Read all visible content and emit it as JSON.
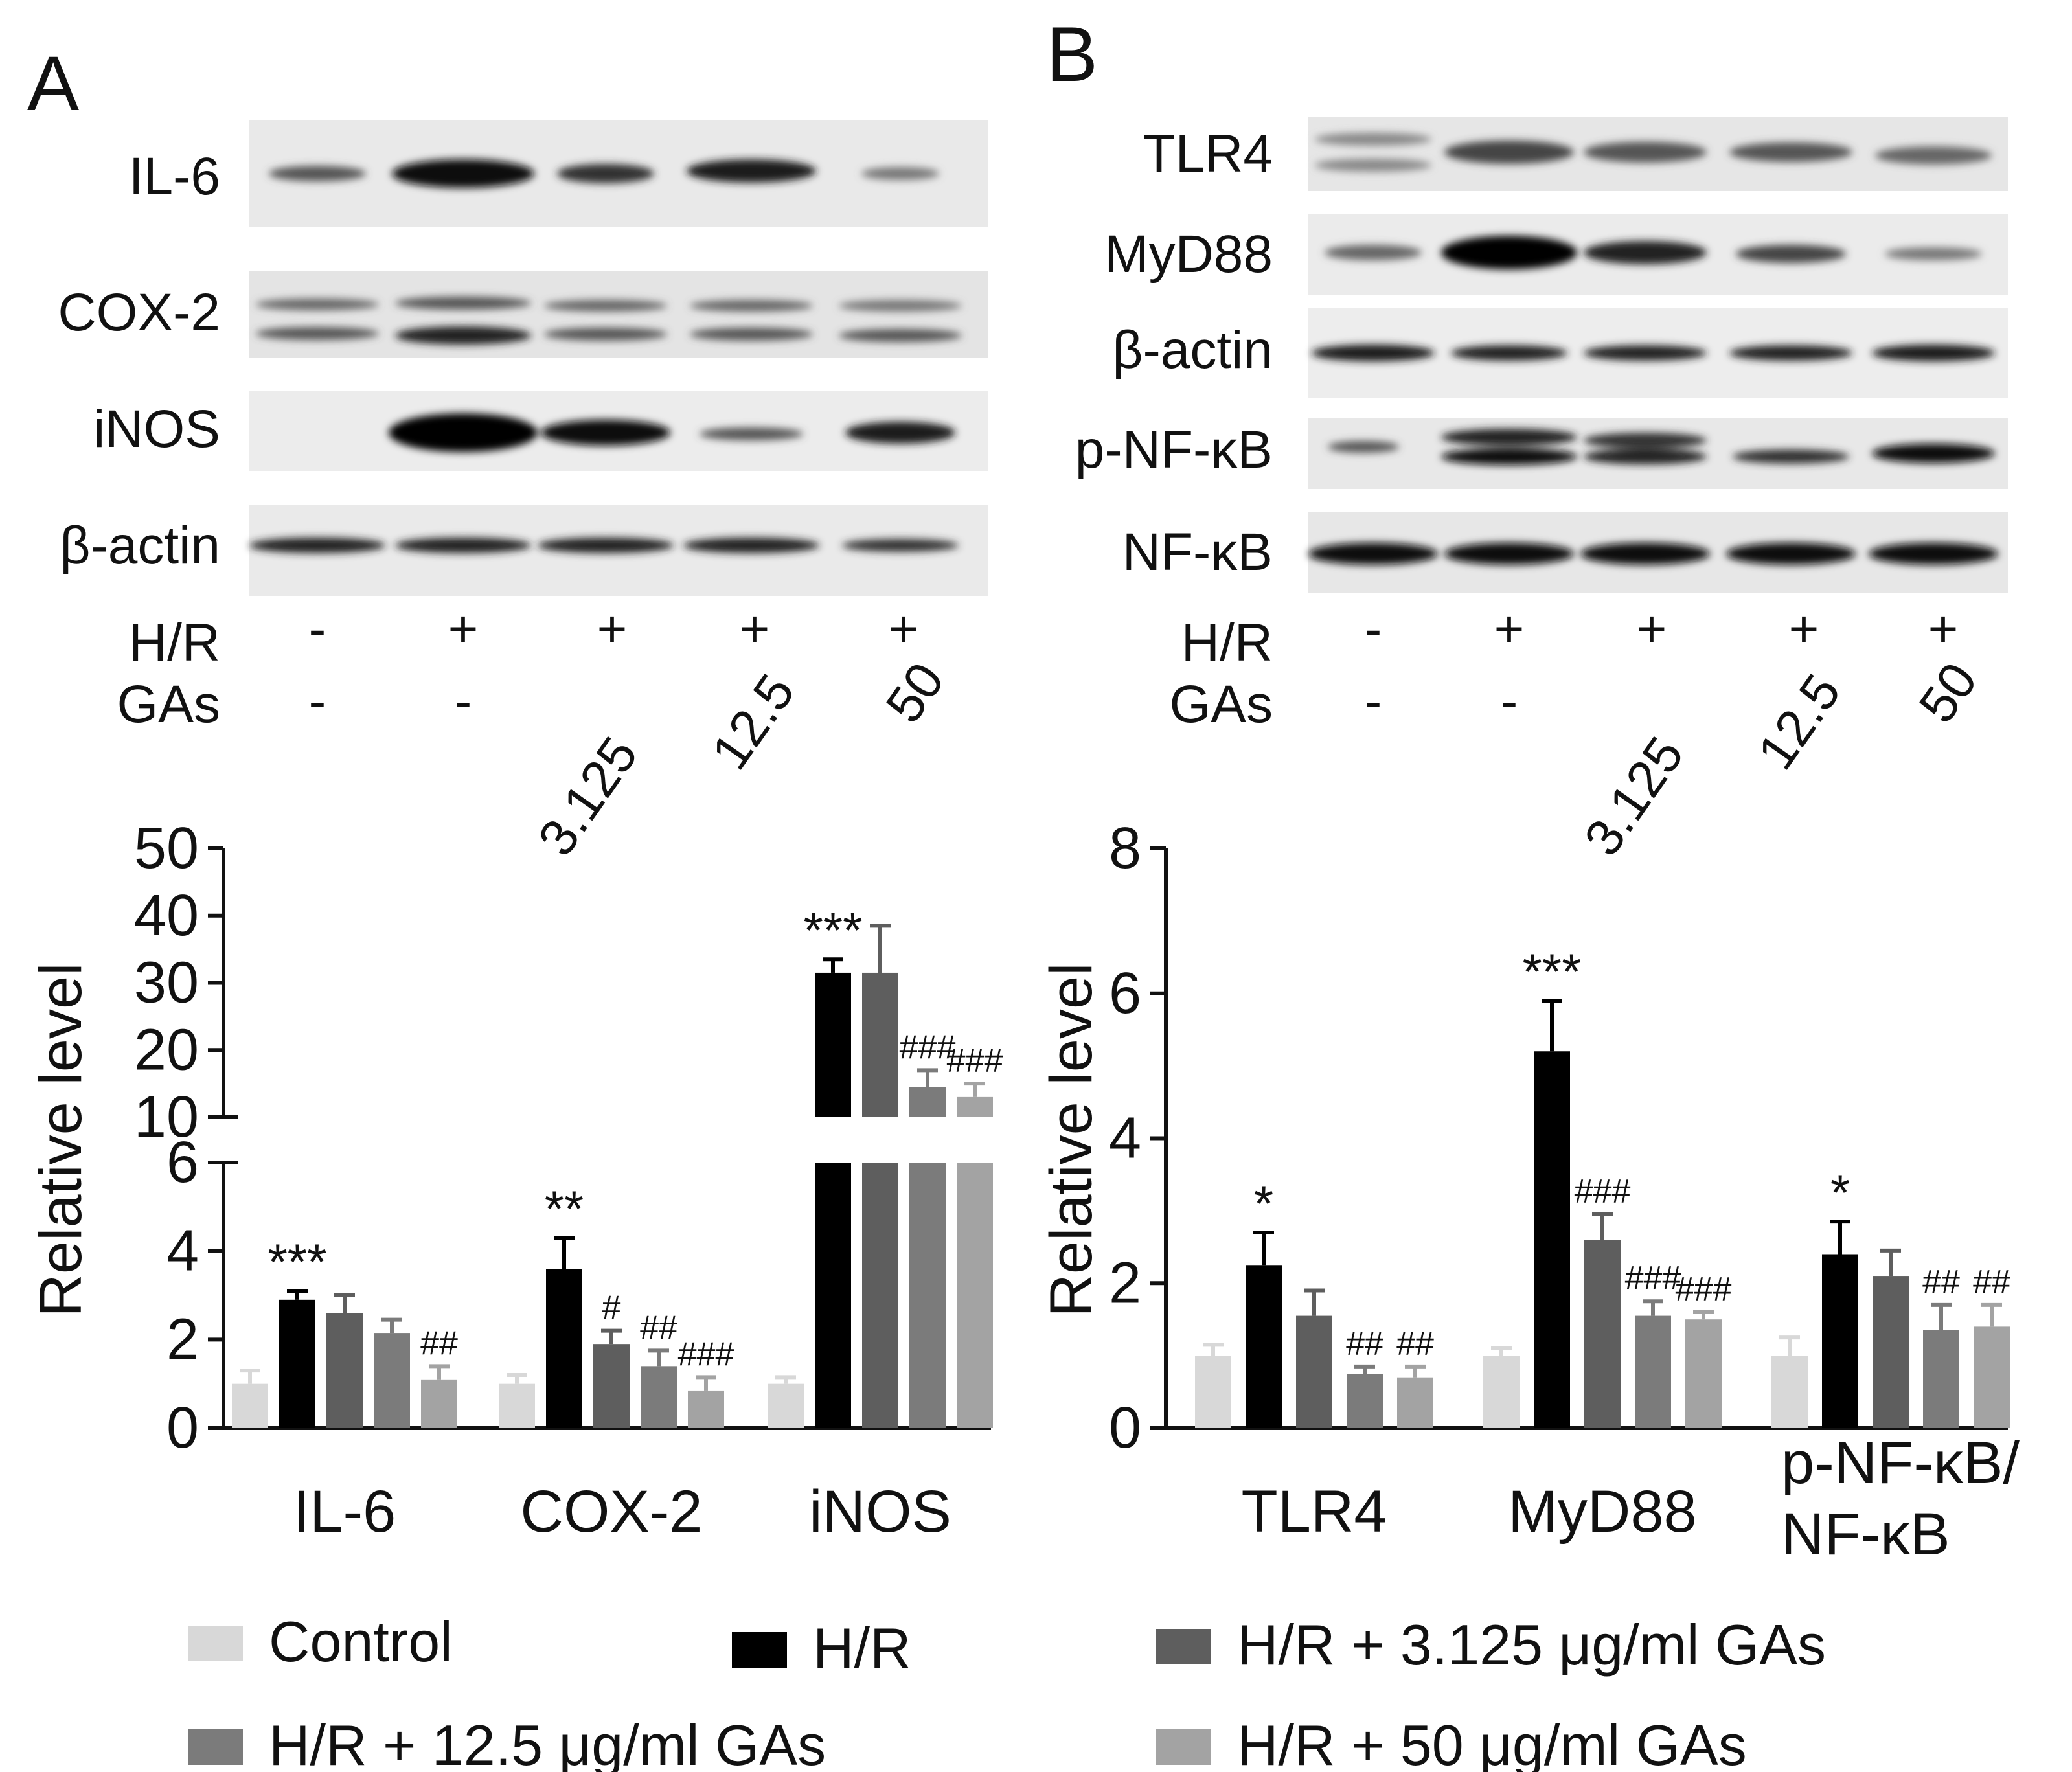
{
  "panels": {
    "a_letter": "A",
    "b_letter": "B"
  },
  "blot_a": {
    "rows": [
      "IL-6",
      "COX-2",
      "iNOS",
      "β-actin"
    ],
    "cond_rows": [
      {
        "label": "H/R",
        "values": [
          "-",
          "+",
          "+",
          "+",
          "+"
        ]
      },
      {
        "label": "GAs",
        "values": [
          "-",
          "-",
          "3.125",
          "12.5",
          "50"
        ]
      }
    ]
  },
  "blot_b": {
    "rows": [
      "TLR4",
      "MyD88",
      "β-actin",
      "p-NF-κB",
      "NF-κB"
    ],
    "cond_rows": [
      {
        "label": "H/R",
        "values": [
          "-",
          "+",
          "+",
          "+",
          "+"
        ]
      },
      {
        "label": "GAs",
        "values": [
          "-",
          "-",
          "3.125",
          "12.5",
          "50"
        ]
      }
    ]
  },
  "series_colors": [
    "#d8d8d8",
    "#000000",
    "#5e5e5e",
    "#7b7b7b",
    "#a3a3a3"
  ],
  "legend": [
    "Control",
    "H/R",
    "H/R + 3.125 μg/ml GAs",
    "H/R + 12.5 μg/ml GAs",
    "H/R + 50 μg/ml GAs"
  ],
  "chart_data": [
    {
      "type": "bar",
      "panel": "A",
      "ylabel": "Relative level",
      "categories": [
        "IL-6",
        "COX-2",
        "iNOS"
      ],
      "axis_break": {
        "lower": [
          0,
          6
        ],
        "upper": [
          10,
          50
        ]
      },
      "lower_ticks": [
        "0",
        "2",
        "4",
        "6"
      ],
      "upper_ticks": [
        "10",
        "20",
        "30",
        "40",
        "50"
      ],
      "series": [
        {
          "name": "Control",
          "values": [
            1.0,
            1.0,
            1.0
          ],
          "errors": [
            0.3,
            0.2,
            0.15
          ],
          "annotations": [
            "",
            "",
            ""
          ]
        },
        {
          "name": "H/R",
          "values": [
            2.9,
            3.6,
            31.5
          ],
          "errors": [
            0.2,
            0.7,
            2.0
          ],
          "annotations": [
            "***",
            "**",
            "***"
          ]
        },
        {
          "name": "H/R + 3.125 μg/ml GAs",
          "values": [
            2.6,
            1.9,
            31.5
          ],
          "errors": [
            0.4,
            0.3,
            7.0
          ],
          "annotations": [
            "",
            "#",
            ""
          ]
        },
        {
          "name": "H/R + 12.5 μg/ml GAs",
          "values": [
            2.15,
            1.4,
            14.5
          ],
          "errors": [
            0.3,
            0.35,
            2.5
          ],
          "annotations": [
            "",
            "##",
            "###"
          ]
        },
        {
          "name": "H/R + 50 μg/ml GAs",
          "values": [
            1.1,
            0.85,
            13.0
          ],
          "errors": [
            0.3,
            0.3,
            2.0
          ],
          "annotations": [
            "##",
            "###",
            "###"
          ]
        }
      ]
    },
    {
      "type": "bar",
      "panel": "B",
      "ylabel": "Relative level",
      "categories": [
        "TLR4",
        "MyD88",
        "p-NF-κB/\nNF-κB"
      ],
      "ylim": [
        0,
        8
      ],
      "ticks": [
        "0",
        "2",
        "4",
        "6",
        "8"
      ],
      "series": [
        {
          "name": "Control",
          "values": [
            1.0,
            1.0,
            1.0
          ],
          "errors": [
            0.15,
            0.1,
            0.25
          ],
          "annotations": [
            "",
            "",
            ""
          ]
        },
        {
          "name": "H/R",
          "values": [
            2.25,
            5.2,
            2.4
          ],
          "errors": [
            0.45,
            0.7,
            0.45
          ],
          "annotations": [
            "*",
            "***",
            "*"
          ]
        },
        {
          "name": "H/R + 3.125 μg/ml GAs",
          "values": [
            1.55,
            2.6,
            2.1
          ],
          "errors": [
            0.35,
            0.35,
            0.35
          ],
          "annotations": [
            "",
            "###",
            ""
          ]
        },
        {
          "name": "H/R + 12.5 μg/ml GAs",
          "values": [
            0.75,
            1.55,
            1.35
          ],
          "errors": [
            0.1,
            0.2,
            0.35
          ],
          "annotations": [
            "##",
            "###",
            "##"
          ]
        },
        {
          "name": "H/R + 50 μg/ml GAs",
          "values": [
            0.7,
            1.5,
            1.4
          ],
          "errors": [
            0.15,
            0.1,
            0.3
          ],
          "annotations": [
            "##",
            "###",
            "##"
          ]
        }
      ]
    }
  ]
}
